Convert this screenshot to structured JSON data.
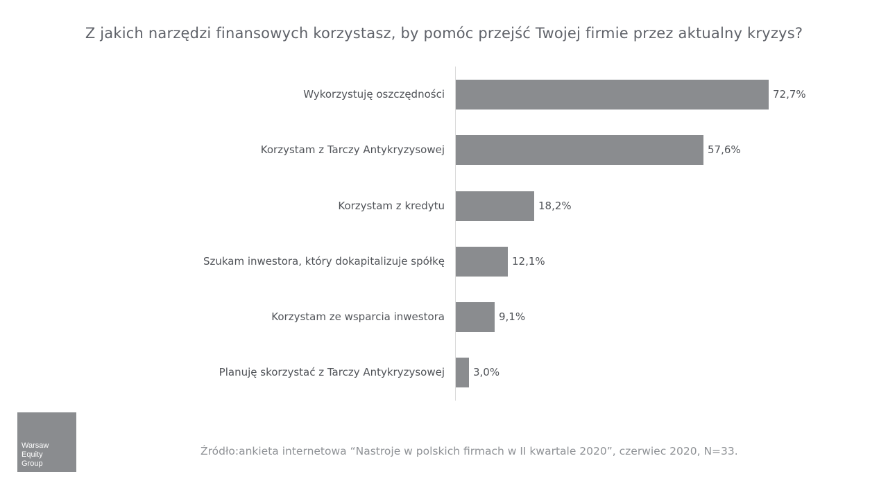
{
  "title": "Z jakich narzędzi finansowych korzystasz, by pomóc przejść Twojej firmie przez aktualny kryzys?",
  "chart_data": {
    "type": "bar",
    "orientation": "horizontal",
    "title": "Z jakich narzędzi finansowych korzystasz, by pomóc przejść Twojej firmie przez aktualny kryzys?",
    "categories": [
      "Wykorzystuję oszczędności",
      "Korzystam z Tarczy Antykryzysowej",
      "Korzystam z kredytu",
      "Szukam inwestora, który dokapitalizuje spółkę",
      "Korzystam ze wsparcia inwestora",
      "Planuję skorzystać z Tarczy Antykryzysowej"
    ],
    "values": [
      72.7,
      57.6,
      18.2,
      12.1,
      9.1,
      3.0
    ],
    "value_labels": [
      "72,7%",
      "57,6%",
      "18,2%",
      "12,1%",
      "9,1%",
      "3,0%"
    ],
    "xlabel": "",
    "ylabel": "",
    "unit": "%",
    "grid": false,
    "legend": "none",
    "bar_color": "#8a8c8f"
  },
  "bars": [
    {
      "label": "Wykorzystuję oszczędności",
      "value": "72,7%"
    },
    {
      "label": "Korzystam z Tarczy Antykryzysowej",
      "value": "57,6%"
    },
    {
      "label": "Korzystam z kredytu",
      "value": "18,2%"
    },
    {
      "label": "Szukam inwestora, który dokapitalizuje spółkę",
      "value": "12,1%"
    },
    {
      "label": "Korzystam ze wsparcia inwestora",
      "value": "9,1%"
    },
    {
      "label": "Planuję skorzystać z Tarczy Antykryzysowej",
      "value": "3,0%"
    }
  ],
  "logo": {
    "line1": "Warsaw",
    "line2": "Equity",
    "line3": "Group"
  },
  "source": "Źródło:ankieta internetowa “Nastroje w polskich firmach w II kwartale 2020”, czerwiec 2020, N=33."
}
